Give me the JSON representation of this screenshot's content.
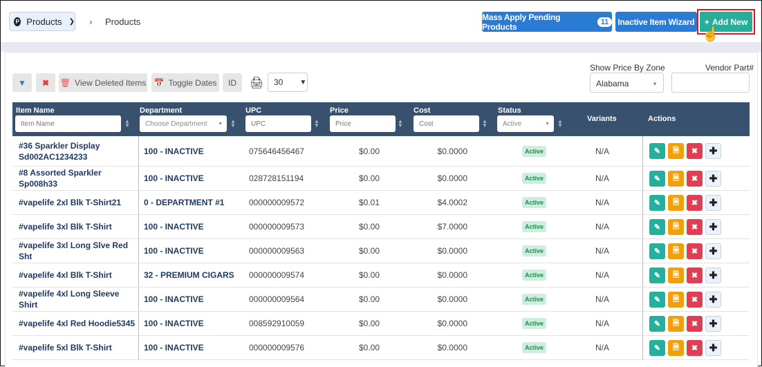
{
  "header": {
    "module": "Products",
    "breadcrumb": "Products",
    "mass_apply": "Mass Apply Pending Products",
    "pending_count": "11",
    "inactive_wizard": "Inactive Item Wizard",
    "add_new": "Add New"
  },
  "toolbar": {
    "view_deleted": "View Deleted Items",
    "toggle_dates": "Toggle Dates",
    "id": "ID",
    "per_page": "30",
    "zone_label": "Show Price By Zone",
    "zone_value": "Alabama",
    "vendor_label": "Vendor Part#"
  },
  "columns": {
    "item_name": "Item Name",
    "department": "Department",
    "upc": "UPC",
    "price": "Price",
    "cost": "Cost",
    "status": "Status",
    "variants": "Variants",
    "actions": "Actions"
  },
  "filters": {
    "item_name": "Item Name",
    "department": "Choose Department",
    "upc": "UPC",
    "price": "Price",
    "cost": "Cost",
    "status": "Active"
  },
  "colors": {
    "header_bg": "#37516e",
    "primary": "#2a7bd4",
    "add": "#26ae9a",
    "edit": "#25b09e",
    "doc": "#f0a00c",
    "delete": "#e03e52"
  },
  "rows": [
    {
      "name": "#36 Sparkler Display Sd002AC1234233",
      "dept": "100 - INACTIVE",
      "upc": "075646456467",
      "price": "$0.00",
      "cost": "$0.0000",
      "status": "Active",
      "variants": "N/A"
    },
    {
      "name": "#8 Assorted Sparkler Sp008h33",
      "dept": "100 - INACTIVE",
      "upc": "028728151194",
      "price": "$0.00",
      "cost": "$0.0000",
      "status": "Active",
      "variants": "N/A"
    },
    {
      "name": "#vapelife 2xl Blk T-Shirt21",
      "dept": "0 - DEPARTMENT #1",
      "upc": "000000009572",
      "price": "$0.01",
      "cost": "$4.0002",
      "status": "Active",
      "variants": "N/A"
    },
    {
      "name": "#vapelife 3xl Blk T-Shirt",
      "dept": "100 - INACTIVE",
      "upc": "000000009573",
      "price": "$0.00",
      "cost": "$7.0000",
      "status": "Active",
      "variants": "N/A"
    },
    {
      "name": "#vapelife 3xl Long Slve Red Sht",
      "dept": "100 - INACTIVE",
      "upc": "000000009563",
      "price": "$0.00",
      "cost": "$0.0000",
      "status": "Active",
      "variants": "N/A"
    },
    {
      "name": "#vapelife 4xl Blk T-Shirt",
      "dept": "32 - PREMIUM CIGARS",
      "upc": "000000009574",
      "price": "$0.00",
      "cost": "$0.0000",
      "status": "Active",
      "variants": "N/A"
    },
    {
      "name": "#vapelife 4xl Long Sleeve Shirt",
      "dept": "100 - INACTIVE",
      "upc": "000000009564",
      "price": "$0.00",
      "cost": "$0.0000",
      "status": "Active",
      "variants": "N/A"
    },
    {
      "name": "#vapelife 4xl Red Hoodie5345",
      "dept": "100 - INACTIVE",
      "upc": "008592910059",
      "price": "$0.00",
      "cost": "$0.0000",
      "status": "Active",
      "variants": "N/A"
    },
    {
      "name": "#vapelife 5xl Blk T-Shirt",
      "dept": "100 - INACTIVE",
      "upc": "000000009576",
      "price": "$0.00",
      "cost": "$0.0000",
      "status": "Active",
      "variants": "N/A"
    }
  ]
}
